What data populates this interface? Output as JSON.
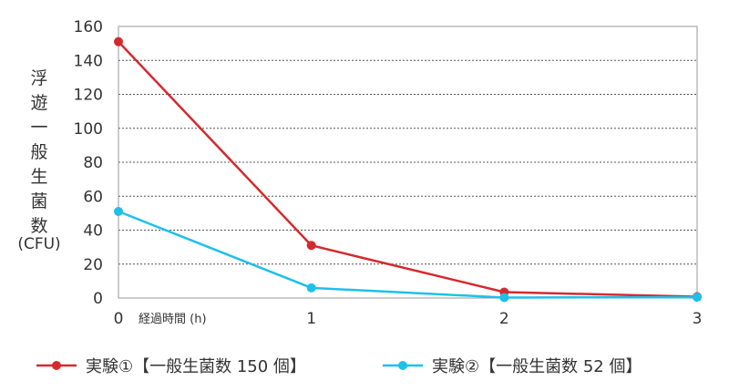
{
  "chart_data": {
    "type": "line",
    "x": [
      0,
      1,
      2,
      3
    ],
    "xlim": [
      0,
      3
    ],
    "ylim": [
      0,
      160
    ],
    "yticks": [
      0,
      20,
      40,
      60,
      80,
      100,
      120,
      140,
      160
    ],
    "xtick_labels": [
      "0",
      "1",
      "2",
      "3"
    ],
    "xlabel": "経過時間 (h)",
    "ylabel": "浮遊一般生菌数",
    "yunit": "(CFU)",
    "grid": "horizontal-dashed",
    "legend_position": "bottom",
    "series": [
      {
        "name": "実験①【一般生菌数 150 個】",
        "color": "#d42a2f",
        "values": [
          151,
          31,
          3.5,
          0.8
        ]
      },
      {
        "name": "実験②【一般生菌数 52 個】",
        "color": "#1ec0ea",
        "values": [
          51,
          6,
          0.3,
          0.5
        ]
      }
    ]
  }
}
